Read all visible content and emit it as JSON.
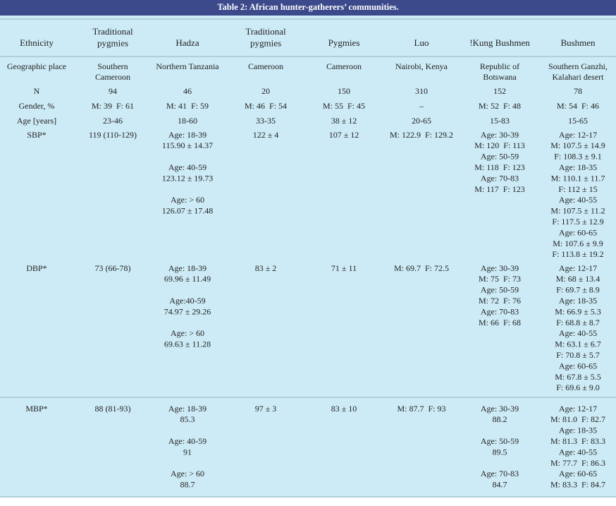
{
  "header": {
    "title": "Table 2: African hunter-gatherers’ communities."
  },
  "table": {
    "columns": [
      [
        "Ethnicity"
      ],
      [
        "Traditional",
        "pygmies"
      ],
      [
        "Hadza"
      ],
      [
        "Traditional",
        "pygmies"
      ],
      [
        "Pygmies"
      ],
      [
        "Luo"
      ],
      [
        "!Kung Bushmen"
      ],
      [
        "Bushmen"
      ]
    ],
    "rows": [
      {
        "label": "Geographic place",
        "cells": [
          [
            [
              "Southern",
              "Cameroon"
            ]
          ],
          [
            [
              "Northern Tanzania"
            ]
          ],
          [
            [
              "Cameroon"
            ]
          ],
          [
            [
              "Cameroon"
            ]
          ],
          [
            [
              "Nairobi, Kenya"
            ]
          ],
          [
            [
              "Republic of",
              "Botswana"
            ]
          ],
          [
            [
              "Southern Ganzhi,",
              "Kalahari desert"
            ]
          ]
        ]
      },
      {
        "label": "N",
        "cells": [
          [
            [
              "94"
            ]
          ],
          [
            [
              "46"
            ]
          ],
          [
            [
              "20"
            ]
          ],
          [
            [
              "150"
            ]
          ],
          [
            [
              "310"
            ]
          ],
          [
            [
              "152"
            ]
          ],
          [
            [
              "78"
            ]
          ]
        ]
      },
      {
        "label": "Gender, %",
        "cells": [
          [
            [
              "M: 39  F: 61"
            ]
          ],
          [
            [
              "M: 41  F: 59"
            ]
          ],
          [
            [
              "M: 46  F: 54"
            ]
          ],
          [
            [
              "M: 55  F: 45"
            ]
          ],
          [
            [
              "–"
            ]
          ],
          [
            [
              "M: 52  F: 48"
            ]
          ],
          [
            [
              "M: 54  F: 46"
            ]
          ]
        ]
      },
      {
        "label": "Age [years]",
        "cells": [
          [
            [
              "23-46"
            ]
          ],
          [
            [
              "18-60"
            ]
          ],
          [
            [
              "33-35"
            ]
          ],
          [
            [
              "38 ± 12"
            ]
          ],
          [
            [
              "20-65"
            ]
          ],
          [
            [
              "15-83"
            ]
          ],
          [
            [
              "15-65"
            ]
          ]
        ]
      },
      {
        "label": "SBP*",
        "cells": [
          [
            [
              "119 (110-129)"
            ]
          ],
          [
            [
              "Age: 18-39",
              "115.90 ± 14.37"
            ],
            [
              "Age: 40-59",
              "123.12 ± 19.73"
            ],
            [
              "Age: > 60",
              "126.07 ± 17.48"
            ]
          ],
          [
            [
              "122 ± 4"
            ]
          ],
          [
            [
              "107 ± 12"
            ]
          ],
          [
            [
              "M: 122.9  F: 129.2"
            ]
          ],
          [
            [
              "Age: 30-39",
              "M: 120  F: 113",
              "Age: 50-59",
              "M: 118  F: 123",
              "Age: 70-83",
              "M: 117  F: 123"
            ]
          ],
          [
            [
              "Age: 12-17",
              "M: 107.5 ± 14.9",
              "F: 108.3 ± 9.1",
              "Age: 18-35",
              "M: 110.1 ± 11.7",
              "F: 112 ± 15",
              "Age: 40-55",
              "M: 107.5 ± 11.2",
              "F: 117.5 ± 12.9",
              "Age: 60-65",
              "M: 107.6 ± 9.9",
              "F: 113.8 ± 19.2"
            ]
          ]
        ]
      },
      {
        "label": "DBP*",
        "cells": [
          [
            [
              "73 (66-78)"
            ]
          ],
          [
            [
              "Age: 18-39",
              "69.96 ± 11.49"
            ],
            [
              "Age:40-59",
              "74.97 ± 29.26"
            ],
            [
              "Age: > 60",
              "69.63 ± 11.28"
            ]
          ],
          [
            [
              "83 ± 2"
            ]
          ],
          [
            [
              "71 ± 11"
            ]
          ],
          [
            [
              "M: 69.7  F: 72.5"
            ]
          ],
          [
            [
              "Age: 30-39",
              "M: 75  F: 73",
              "Age: 50-59",
              "M: 72  F: 76",
              "Age: 70-83",
              "M: 66  F: 68"
            ]
          ],
          [
            [
              "Age: 12-17",
              "M: 68 ± 13.4",
              "F: 69.7 ± 8.9",
              "Age: 18-35",
              "M: 66.9 ± 5.3",
              "F: 68.8 ± 8.7",
              "Age: 40-55",
              "M: 63.1 ± 6.7",
              "F: 70.8 ± 5.7",
              "Age: 60-65",
              "M: 67.8 ± 5.5",
              "F: 69.6 ± 9.0"
            ]
          ]
        ]
      },
      {
        "label": "MBP*",
        "cells": [
          [
            [
              "88 (81-93)"
            ]
          ],
          [
            [
              "Age: 18-39",
              "85.3"
            ],
            [
              "Age: 40-59",
              "91"
            ],
            [
              "Age: > 60",
              "88.7"
            ]
          ],
          [
            [
              "97 ± 3"
            ]
          ],
          [
            [
              "83 ± 10"
            ]
          ],
          [
            [
              "M: 87.7  F: 93"
            ]
          ],
          [
            [
              "Age: 30-39",
              "88.2"
            ],
            [
              "Age: 50-59",
              "89.5"
            ],
            [
              "Age: 70-83",
              "84.7"
            ]
          ],
          [
            [
              "Age: 12-17",
              "M: 81.0  F: 82.7",
              "Age: 18-35",
              "M: 81.3  F: 83.3",
              "Age: 40-55",
              "M: 77.7  F: 86.3",
              "Age: 60-65",
              "M: 83.3  F: 84.7"
            ]
          ]
        ]
      }
    ]
  }
}
